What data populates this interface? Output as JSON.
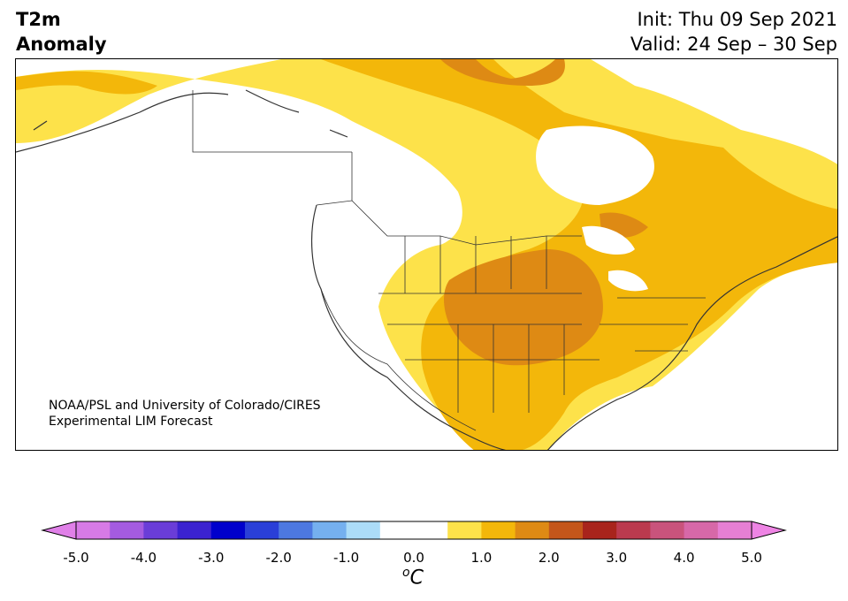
{
  "header": {
    "title_line1": "T2m",
    "title_line2": "Anomaly",
    "init": "Init: Thu 09 Sep 2021",
    "valid": "Valid: 24 Sep – 30 Sep"
  },
  "credit": {
    "line1": "NOAA/PSL and University of Colorado/CIRES",
    "line2": "Experimental LIM Forecast"
  },
  "colorbar": {
    "unit_base": "C",
    "unit_sup": "o",
    "tick_labels": [
      "-5.0",
      "-4.0",
      "-3.0",
      "-2.0",
      "-1.0",
      "0.0",
      "1.0",
      "2.0",
      "3.0",
      "4.0",
      "5.0"
    ],
    "colors": [
      "#d77ae6",
      "#a45be0",
      "#6a3dd8",
      "#3b22d0",
      "#0000cc",
      "#2a3fd8",
      "#4d78e0",
      "#75b0ef",
      "#acdcf8",
      "#ffffff",
      "#ffffff",
      "#fde24a",
      "#f3b70a",
      "#de8a14",
      "#c4561a",
      "#a8241c",
      "#bb3a4e",
      "#c9537c",
      "#d768a8",
      "#e67fd4"
    ],
    "under_color": "#e080e8",
    "over_color": "#ee84e4"
  },
  "map_colors": {
    "land": "#ffffff",
    "anom_0_5_1_0": "#fde24a",
    "anom_1_0_1_5": "#f3b70a",
    "anom_1_5_2_0": "#de8a14",
    "boundary": "#333333"
  }
}
